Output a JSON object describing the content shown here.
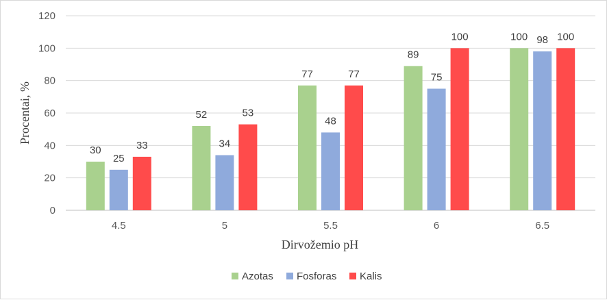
{
  "chart_data": {
    "type": "bar",
    "categories": [
      "4.5",
      "5",
      "5.5",
      "6",
      "6.5"
    ],
    "series": [
      {
        "name": "Azotas",
        "color": "#a9d18e",
        "values": [
          30,
          52,
          77,
          89,
          100
        ]
      },
      {
        "name": "Fosforas",
        "color": "#8faadc",
        "values": [
          25,
          34,
          48,
          75,
          98
        ]
      },
      {
        "name": "Kalis",
        "color": "#ff4b4b",
        "values": [
          33,
          53,
          77,
          100,
          100
        ]
      }
    ],
    "xlabel": "Dirvožemio pH",
    "ylabel": "Procentai, %",
    "ylim": [
      0,
      120
    ],
    "yticks": [
      0,
      20,
      40,
      60,
      80,
      100,
      120
    ],
    "grid": true,
    "legend_position": "bottom"
  }
}
